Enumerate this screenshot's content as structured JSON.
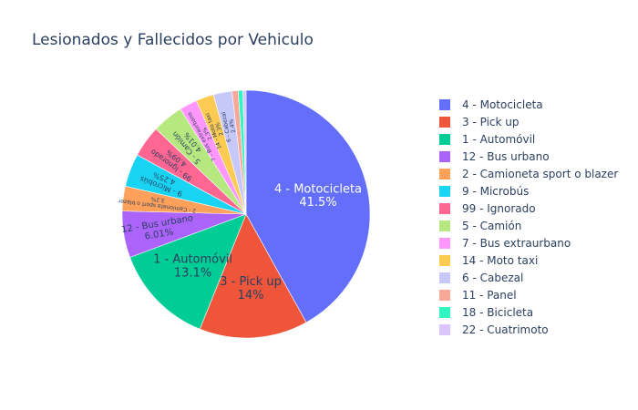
{
  "chart_data": {
    "type": "pie",
    "title": "Lesionados y Fallecidos por Vehiculo",
    "categories": [
      "4 - Motocicleta",
      "3 - Pick up",
      "1 - Automóvil",
      "12 - Bus urbano",
      "2 - Camioneta sport o blazer",
      "9 - Microbús",
      "99 - Ignorado",
      "5 - Camión",
      "7 - Bus extraurbano",
      "14 - Moto taxi",
      "6 - Cabezal",
      "11 - Panel",
      "18 - Bicicleta",
      "22 - Cuatrimoto"
    ],
    "values": [
      41.5,
      14,
      13.1,
      6.01,
      3.2,
      4.25,
      4.09,
      4.01,
      2.3,
      2.3,
      2.4,
      0.8,
      0.6,
      0.4
    ],
    "slice_labels": [
      "41.5%",
      "14%",
      "13.1%",
      "6.01%",
      "3.2%",
      "4.25%",
      "4.09%",
      "4.01%",
      "2.3%",
      "2.3%",
      "2.4%",
      "",
      "",
      ""
    ],
    "colors": [
      "#636efa",
      "#EF553B",
      "#00cc96",
      "#ab63fa",
      "#FFA15A",
      "#19d3f3",
      "#FF6692",
      "#B6E880",
      "#FF97FF",
      "#FECB52",
      "#c6c8f9",
      "#f7a898",
      "#33f5c4",
      "#dcc4fd"
    ],
    "direction": "clockwise",
    "legend_position": "right"
  }
}
